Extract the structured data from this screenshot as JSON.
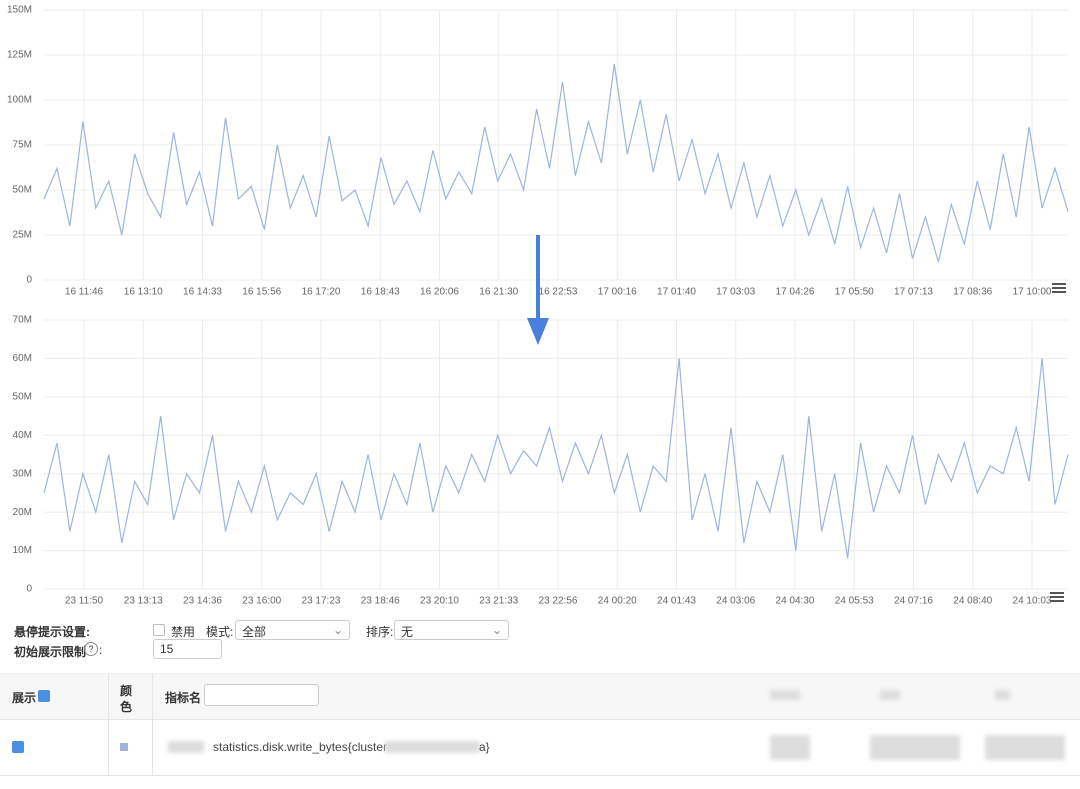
{
  "chart_data": [
    {
      "type": "line",
      "color": "#9fb4dc",
      "grid": true,
      "ylim": [
        0,
        150
      ],
      "yticks": [
        {
          "value": 0,
          "label": "0"
        },
        {
          "value": 25,
          "label": "25M"
        },
        {
          "value": 50,
          "label": "50M"
        },
        {
          "value": 75,
          "label": "75M"
        },
        {
          "value": 100,
          "label": "100M"
        },
        {
          "value": 125,
          "label": "125M"
        },
        {
          "value": 150,
          "label": "150M"
        }
      ],
      "xtick_labels": [
        "16 11:46",
        "16 13:10",
        "16 14:33",
        "16 15:56",
        "16 17:20",
        "16 18:43",
        "16 20:06",
        "16 21:30",
        "16 22:53",
        "17 00:16",
        "17 01:40",
        "17 03:03",
        "17 04:26",
        "17 05:50",
        "17 07:13",
        "17 08:36",
        "17 10:00"
      ],
      "values": [
        45,
        62,
        30,
        88,
        40,
        55,
        25,
        70,
        48,
        35,
        82,
        42,
        60,
        30,
        90,
        45,
        52,
        28,
        75,
        40,
        58,
        35,
        80,
        44,
        50,
        30,
        68,
        42,
        55,
        38,
        72,
        45,
        60,
        48,
        85,
        55,
        70,
        50,
        95,
        62,
        110,
        58,
        88,
        65,
        120,
        70,
        100,
        60,
        92,
        55,
        78,
        48,
        70,
        40,
        65,
        35,
        58,
        30,
        50,
        25,
        45,
        20,
        52,
        18,
        40,
        15,
        48,
        12,
        35,
        10,
        42,
        20,
        55,
        28,
        70,
        35,
        85,
        40,
        62,
        38
      ]
    },
    {
      "type": "line",
      "color": "#9fb4dc",
      "grid": true,
      "ylim": [
        0,
        70
      ],
      "yticks": [
        {
          "value": 0,
          "label": "0"
        },
        {
          "value": 10,
          "label": "10M"
        },
        {
          "value": 20,
          "label": "20M"
        },
        {
          "value": 30,
          "label": "30M"
        },
        {
          "value": 40,
          "label": "40M"
        },
        {
          "value": 50,
          "label": "50M"
        },
        {
          "value": 60,
          "label": "60M"
        },
        {
          "value": 70,
          "label": "70M"
        }
      ],
      "xtick_labels": [
        "23 11:50",
        "23 13:13",
        "23 14:36",
        "23 16:00",
        "23 17:23",
        "23 18:46",
        "23 20:10",
        "23 21:33",
        "23 22:56",
        "24 00:20",
        "24 01:43",
        "24 03:06",
        "24 04:30",
        "24 05:53",
        "24 07:16",
        "24 08:40",
        "24 10:03"
      ],
      "values": [
        25,
        38,
        15,
        30,
        20,
        35,
        12,
        28,
        22,
        45,
        18,
        30,
        25,
        40,
        15,
        28,
        20,
        32,
        18,
        25,
        22,
        30,
        15,
        28,
        20,
        35,
        18,
        30,
        22,
        38,
        20,
        32,
        25,
        35,
        28,
        40,
        30,
        36,
        32,
        42,
        28,
        38,
        30,
        40,
        25,
        35,
        20,
        32,
        28,
        60,
        18,
        30,
        15,
        42,
        12,
        28,
        20,
        35,
        10,
        45,
        15,
        30,
        8,
        38,
        20,
        32,
        25,
        40,
        22,
        35,
        28,
        38,
        25,
        32,
        30,
        42,
        28,
        60,
        22,
        35
      ]
    }
  ],
  "hover_settings": {
    "label": "悬停提示设置:",
    "disable": "禁用",
    "mode_label": "模式:",
    "mode": "全部",
    "sort_label": "排序:",
    "sort": "无"
  },
  "display_limit": {
    "label": "初始展示限制",
    "value": 15
  },
  "table": {
    "headers": [
      "展示",
      "颜色",
      "指标名"
    ],
    "rows": [
      {
        "metric_prefix": "statistics.disk.write_bytes{cluster=",
        "metric_suffix": "a}"
      }
    ]
  }
}
